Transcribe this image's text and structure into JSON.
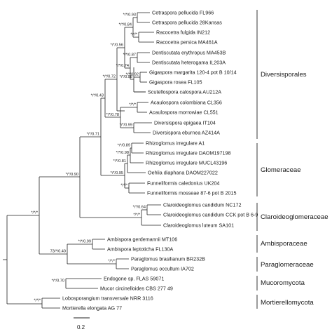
{
  "taxa": [
    "Cetraspora pellucida FL966",
    "Cetraspora pellucida 28Kansas",
    "Racocetra fulgida IN212",
    "Racocetra persica MA461A",
    "Dentiscutata erythropus MA453B",
    "Dentiscutata heterogama IL203A",
    "Gigaspora margarita 120-4 pot B 10/14",
    "Gigaspora rosea FL105",
    "Scutellospora calospora AU212A",
    "Acaulospora colombiana CL356",
    "Acaulospora morrowiae CL551",
    "Diversispora epigaea IT104",
    "Diversispora eburnea AZ414A",
    "Rhizoglomus irregulare A1",
    "Rhizoglomus irregulare DAOM197198",
    "Rhizoglomus irregulare MUCL43196",
    "Oehlia diaphana DAOM227022",
    "Funneliformis caledonius UK204",
    "Funneliformis mosseae 87-6 pot B 2015",
    "Claroideoglomus candidum NC172",
    "Claroideoglomus candidum CCK pot B 6-9",
    "Claroideoglomus luteum SA101",
    "Ambispora gerdemannii MT106",
    "Ambispora leptoticha FL130A",
    "Paraglomus brasilianum BR232B",
    "Paraglomus occultum IA702",
    "Endogone sp. FLAS 59071",
    "Mucor circinelloides CBS 277 49",
    "Lobosporangium transversale NRR 3116",
    "Mortierella elongata AG 77"
  ],
  "support": {
    "cetraspora": "*/*/0.93",
    "cetra_raco": "*/*/0.84",
    "racocetra": "*/*/*",
    "dent_gig_upper": "*/*/0.56",
    "dentiscutata": "*/*/0.87",
    "dent_gig": "*/*/0.74",
    "gigaspora_outer": "*/*/0.98",
    "gigaspora": "*/*/0.92",
    "gigasporaceae": "*/*/0.72",
    "acaulospora": "*/*/*",
    "acau_divers": "*/*/0.78",
    "diversispora": "*/*/0.99",
    "diversisporales": "*/*/0.43",
    "rhizo_inner": "*/*/0.89",
    "rhizoglomus": "*/*/0.98",
    "rhizo_oehlia": "*/*/0.81",
    "funneliformis": "*/*/*",
    "glomeraceae": "*/*/0.95",
    "diver_glom": "*/*/0.71",
    "claroideo_cand": "*/*/0.64",
    "claroideoglomeraceae": "*/*/*",
    "glomeromycota_core": "*/*/0.90",
    "ambispora": "*/*/0.99",
    "archaeo_para": "73/*/0.40",
    "paraglomus": "*/*/*",
    "endo_mucor": "*/*/0.70",
    "root": "*/*/*",
    "mortierellomycota": "*/*/*"
  },
  "clades": [
    "Diversisporales",
    "Glomeraceae",
    "Claroideoglomeraceae",
    "Ambisporaceae",
    "Paraglomeraceae",
    "Mucoromycota",
    "Mortierellomycota"
  ],
  "scale_label": "0.2"
}
